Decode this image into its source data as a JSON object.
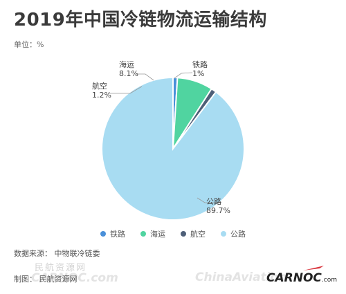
{
  "header": {
    "title": "2019年中国冷链物流运输结构",
    "unit": "单位：%"
  },
  "chart_data": {
    "type": "pie",
    "categories": [
      "铁路",
      "海运",
      "航空",
      "公路"
    ],
    "values": [
      1,
      8.1,
      1.2,
      89.7
    ],
    "value_labels": [
      "1%",
      "8.1%",
      "1.2%",
      "89.7%"
    ],
    "colors": [
      "#4a90d9",
      "#50d4a0",
      "#4e5f78",
      "#a8dcf2"
    ],
    "legend_position": "bottom"
  },
  "footer": {
    "source": "数据来源： 中物联冷链委",
    "maker": "制图： 民航资源网",
    "watermark_cn": "民航资源网",
    "watermark_en": "CARNOC.com",
    "watermark_en2": "ChinaAviation",
    "brand_main": "CARNOC",
    "brand_sub": ".com"
  }
}
